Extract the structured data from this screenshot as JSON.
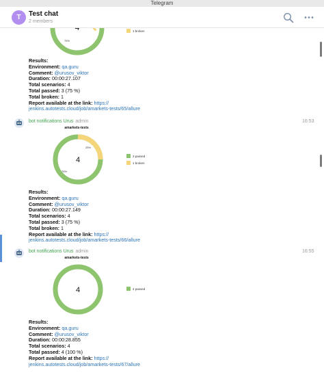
{
  "window": {
    "title": "Telegram"
  },
  "header": {
    "avatar_letter": "T",
    "title": "Test chat",
    "subtitle": "2 members",
    "icons": [
      "search-icon",
      "more-icon"
    ]
  },
  "colors": {
    "passed": "#8ec46e",
    "broken": "#f5d57a",
    "link": "#2b73b6",
    "sender": "#3fa34d"
  },
  "labels": {
    "results": "Results:",
    "environment": "Environment:",
    "comment": "Comment:",
    "duration": "Duration:",
    "total_scenarios": "Total scenarios:",
    "total_passed": "Total passed:",
    "total_broken": "Total broken:",
    "report": "Report available at the link:"
  },
  "messages": [
    {
      "chart": {
        "center_value": "4",
        "passed_pct_label": "75%",
        "legend": [
          {
            "label": "1 broken",
            "color": "#f5d57a"
          }
        ]
      },
      "results": {
        "environment": "qa.guru",
        "comment": "@urusov_viktor",
        "duration": "00:00:27.107",
        "total_scenarios": "4",
        "total_passed": "3 (75 %)",
        "total_broken": "1",
        "report_link_1": "https://",
        "report_link_2": "jenkins.autotests.cloud/job/amarkets-tests/65/allure"
      }
    },
    {
      "sender": "bot notifications Urus",
      "role": "admin",
      "time": "16:53",
      "chart": {
        "title": "amarkets-tests",
        "center_value": "4",
        "passed_pct_label": "75%",
        "broken_pct_label": "25%",
        "passed_fraction": 0.75,
        "broken_fraction": 0.25,
        "legend": [
          {
            "label": "3 passed",
            "color": "#8ec46e"
          },
          {
            "label": "1 broken",
            "color": "#f5d57a"
          }
        ]
      },
      "results": {
        "environment": "qa.guru",
        "comment": "@urusov_viktor",
        "duration": "00:00:27.149",
        "total_scenarios": "4",
        "total_passed": "3 (75 %)",
        "total_broken": "1",
        "report_link_1": "https://",
        "report_link_2": "jenkins.autotests.cloud/job/amarkets-tests/66/allure"
      }
    },
    {
      "sender": "bot notifications Urus",
      "role": "admin",
      "time": "16:55",
      "chart": {
        "title": "amarkets-tests",
        "center_value": "4",
        "passed_fraction": 1.0,
        "legend": [
          {
            "label": "4 passed",
            "color": "#8ec46e"
          }
        ]
      },
      "results": {
        "environment": "qa.guru",
        "comment": "@urusov_viktor",
        "duration": "00:00:28.855",
        "total_scenarios": "4",
        "total_passed": "4 (100 %)",
        "report_link_1": "https://",
        "report_link_2": "jenkins.autotests.cloud/job/amarkets-tests/67/allure"
      }
    }
  ]
}
